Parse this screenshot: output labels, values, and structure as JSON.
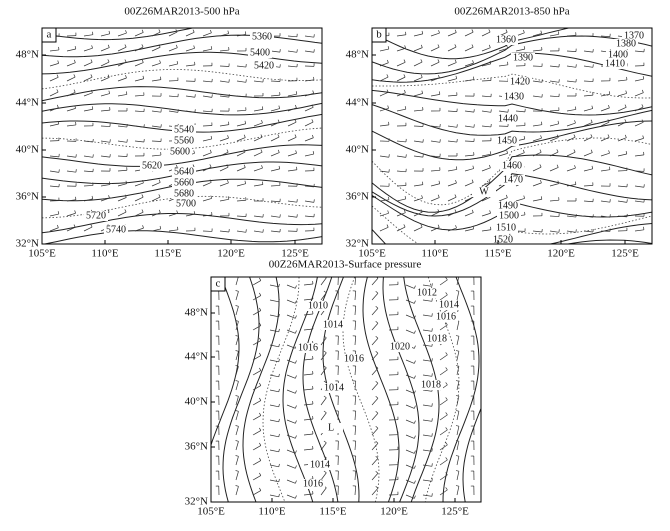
{
  "axes": {
    "x_ticks": [
      "105°E",
      "110°E",
      "115°E",
      "120°E",
      "125°E"
    ],
    "y_ticks": [
      "48°N",
      "44°N",
      "40°N",
      "36°N",
      "32°N"
    ]
  },
  "panels": [
    {
      "title": "00Z26MAR2013-500 hPa",
      "letter": "a",
      "contour_labels": [
        "5360",
        "5400",
        "5420",
        "5540",
        "5560",
        "5600",
        "5620",
        "5640",
        "5660",
        "5680",
        "5700",
        "5720",
        "5740"
      ]
    },
    {
      "title": "00Z26MAR2013-850 hPa",
      "letter": "b",
      "contour_labels": [
        "1360",
        "1370",
        "1380",
        "1390",
        "1400",
        "1410",
        "1420",
        "1430",
        "1440",
        "1450",
        "1460",
        "1470",
        "1490",
        "1500",
        "1510",
        "1520",
        "W"
      ]
    },
    {
      "title": "00Z26MAR2013-Surface pressure",
      "letter": "c",
      "contour_labels": [
        "1012",
        "1010",
        "1014",
        "1016",
        "1014",
        "1018",
        "1016",
        "1020",
        "1016",
        "1018",
        "1014",
        "L",
        "1014",
        "1016"
      ]
    }
  ]
}
